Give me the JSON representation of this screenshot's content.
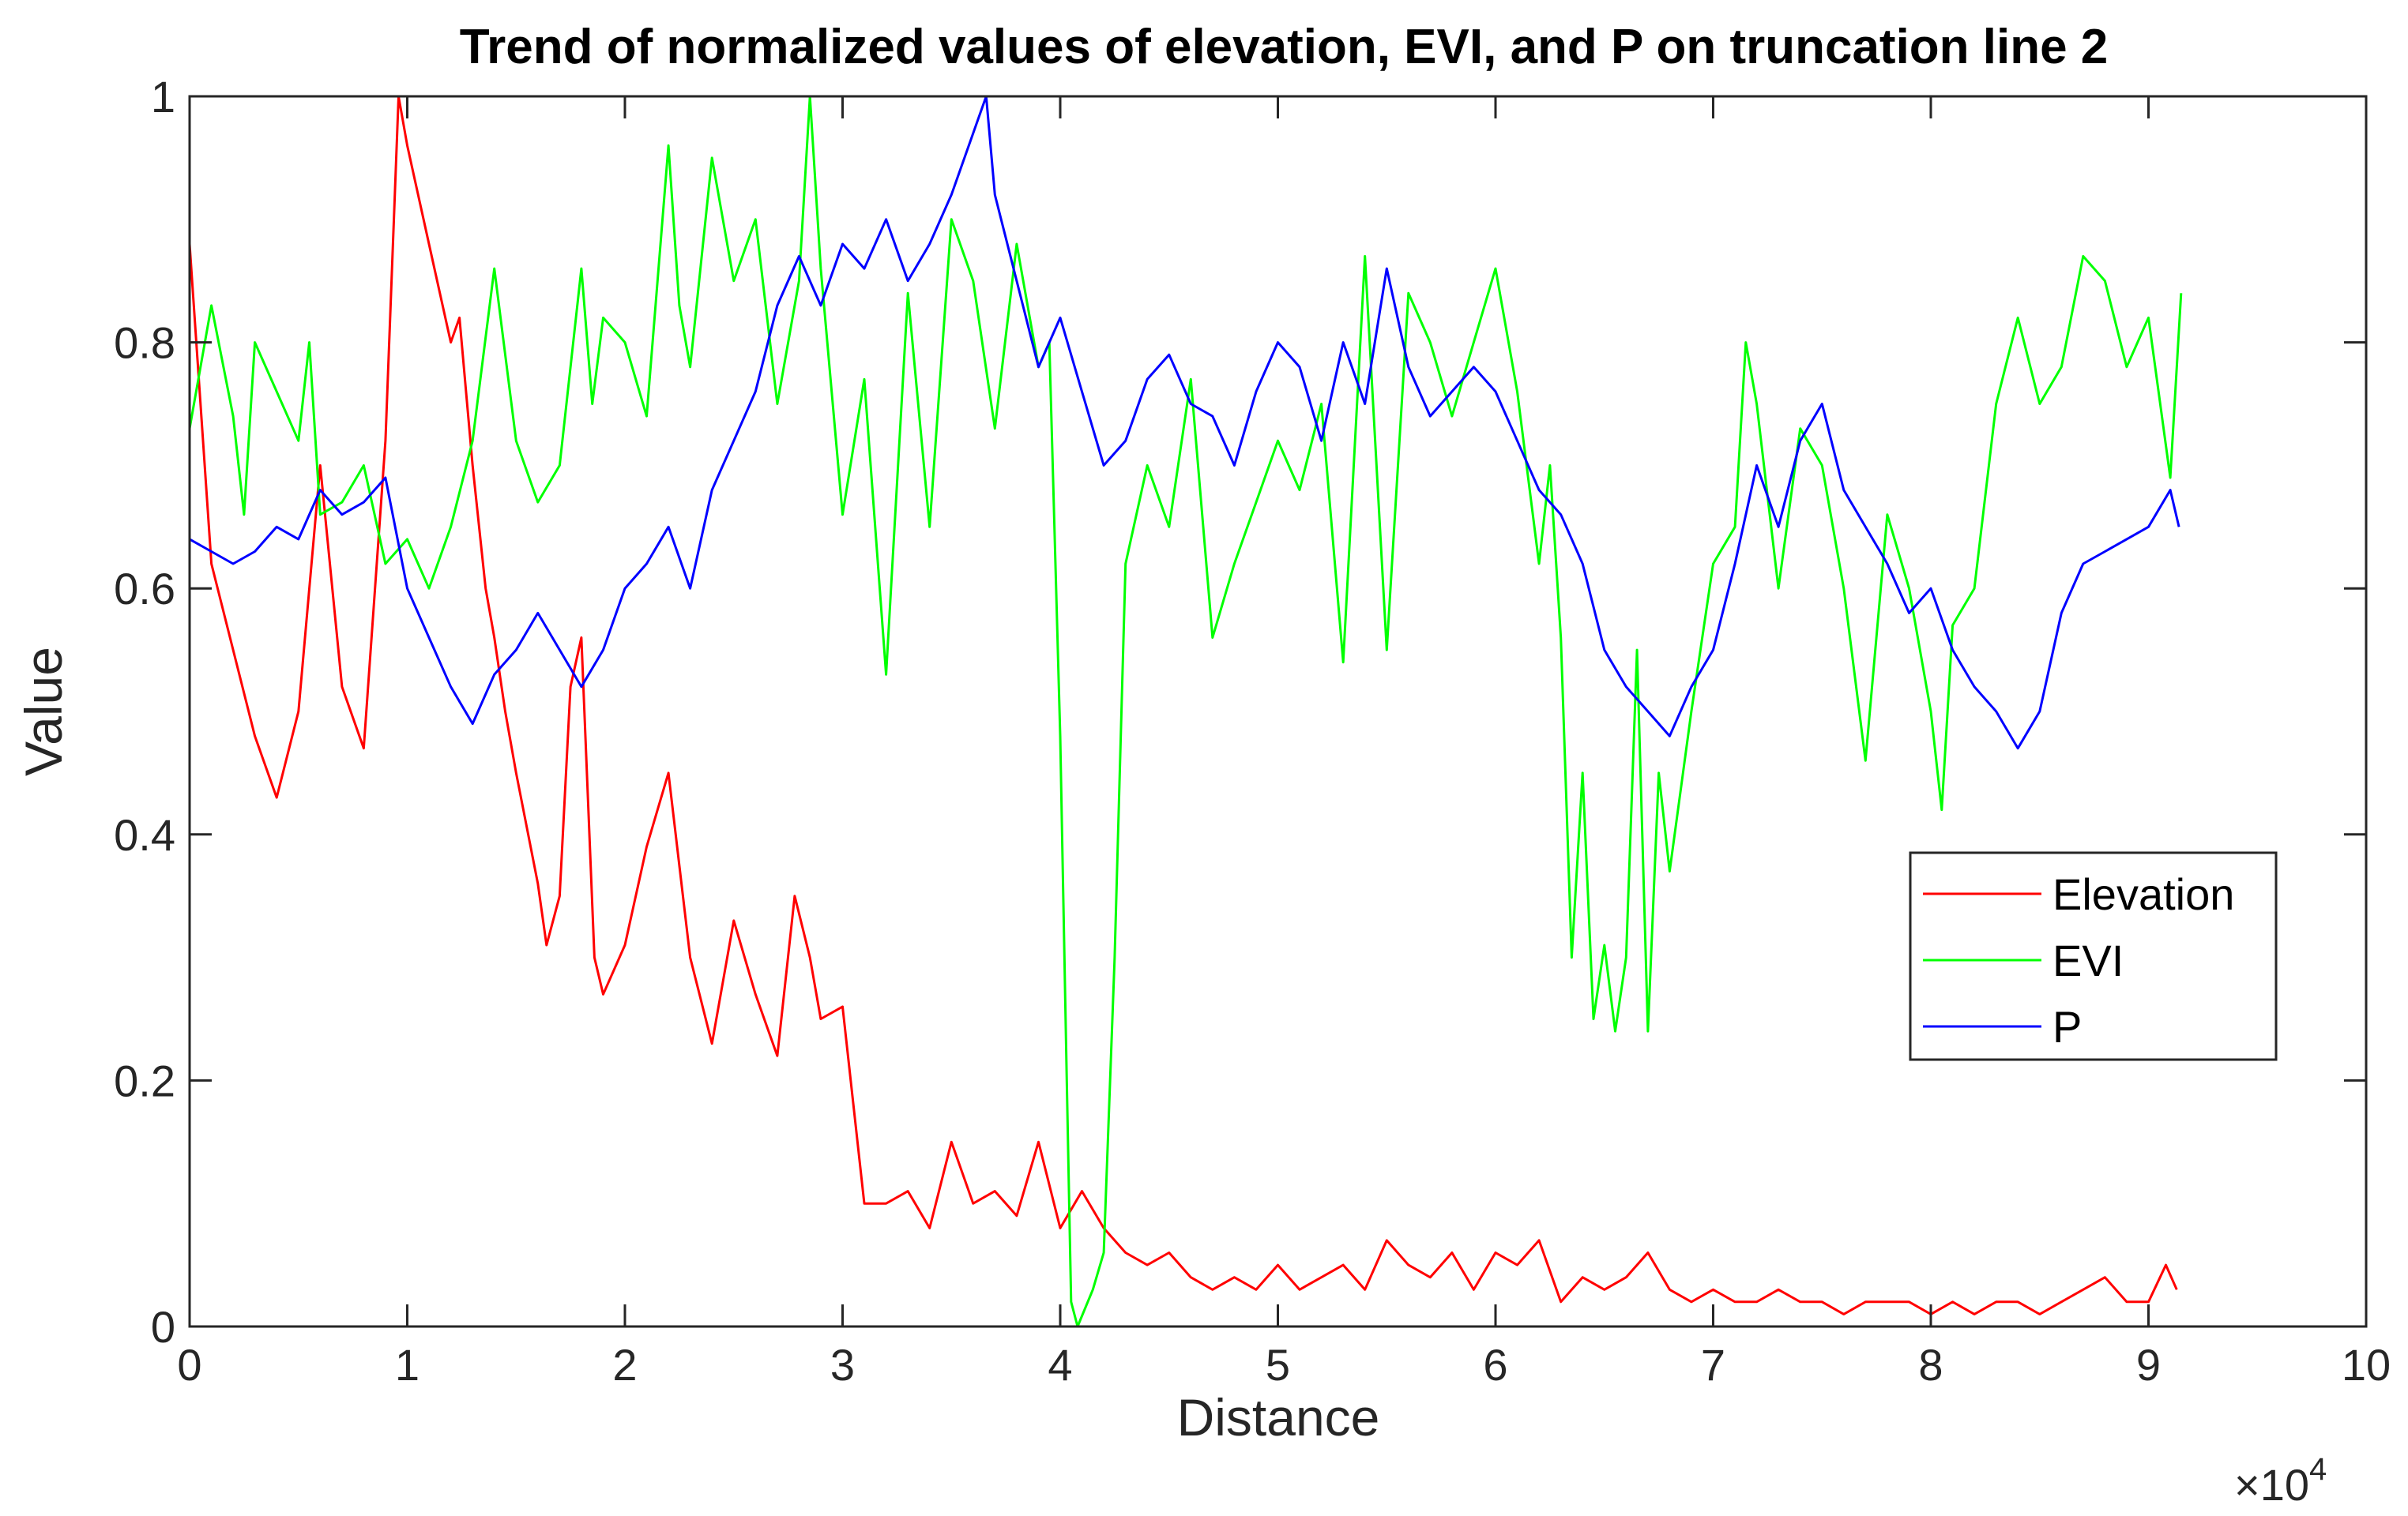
{
  "chart_data": {
    "type": "line",
    "title": "Trend of normalized values of elevation, EVI, and P on truncation line 2",
    "xlabel": "Distance",
    "ylabel": "Value",
    "xlim": [
      0,
      100000
    ],
    "ylim": [
      0,
      1
    ],
    "x_exponent_label": "×10",
    "x_exponent_power": "4",
    "x_tick_values": [
      0,
      10000,
      20000,
      30000,
      40000,
      50000,
      60000,
      70000,
      80000,
      90000,
      100000
    ],
    "x_tick_labels": [
      "0",
      "1",
      "2",
      "3",
      "4",
      "5",
      "6",
      "7",
      "8",
      "9",
      "10"
    ],
    "y_tick_values": [
      0,
      0.2,
      0.4,
      0.6,
      0.8,
      1
    ],
    "y_tick_labels": [
      "0",
      "0.2",
      "0.4",
      "0.6",
      "0.8",
      "1"
    ],
    "grid": false,
    "legend_position": "center-right",
    "series": [
      {
        "name": "Elevation",
        "color": "#ff0000",
        "x": [
          0,
          1000,
          2000,
          3000,
          4000,
          5000,
          6000,
          7000,
          8000,
          9000,
          9600,
          10000,
          11000,
          12000,
          12400,
          13000,
          13600,
          14000,
          14500,
          15000,
          16000,
          16400,
          17000,
          17500,
          18000,
          18600,
          19000,
          20000,
          21000,
          22000,
          23000,
          24000,
          25000,
          26000,
          27000,
          27800,
          28500,
          29000,
          30000,
          31000,
          32000,
          33000,
          34000,
          35000,
          36000,
          37000,
          38000,
          39000,
          40000,
          41000,
          42000,
          43000,
          44000,
          45000,
          46000,
          47000,
          48000,
          49000,
          50000,
          51000,
          52000,
          53000,
          54000,
          55000,
          56000,
          57000,
          58000,
          59000,
          60000,
          61000,
          62000,
          63000,
          64000,
          65000,
          66000,
          67000,
          68000,
          69000,
          70000,
          71000,
          72000,
          73000,
          74000,
          75000,
          76000,
          77000,
          78000,
          79000,
          80000,
          81000,
          82000,
          83000,
          84000,
          85000,
          86000,
          87000,
          88000,
          89000,
          90000,
          90800,
          91300
        ],
        "y": [
          0.88,
          0.62,
          0.55,
          0.48,
          0.43,
          0.5,
          0.7,
          0.52,
          0.47,
          0.72,
          1.0,
          0.96,
          0.88,
          0.8,
          0.82,
          0.7,
          0.6,
          0.56,
          0.5,
          0.45,
          0.36,
          0.31,
          0.35,
          0.52,
          0.56,
          0.3,
          0.27,
          0.31,
          0.39,
          0.45,
          0.3,
          0.23,
          0.33,
          0.27,
          0.22,
          0.35,
          0.3,
          0.25,
          0.26,
          0.1,
          0.1,
          0.11,
          0.08,
          0.15,
          0.1,
          0.11,
          0.09,
          0.15,
          0.08,
          0.11,
          0.08,
          0.06,
          0.05,
          0.06,
          0.04,
          0.03,
          0.04,
          0.03,
          0.05,
          0.03,
          0.04,
          0.05,
          0.03,
          0.07,
          0.05,
          0.04,
          0.06,
          0.03,
          0.06,
          0.05,
          0.07,
          0.02,
          0.04,
          0.03,
          0.04,
          0.06,
          0.03,
          0.02,
          0.03,
          0.02,
          0.02,
          0.03,
          0.02,
          0.02,
          0.01,
          0.02,
          0.02,
          0.02,
          0.01,
          0.02,
          0.01,
          0.02,
          0.02,
          0.01,
          0.02,
          0.03,
          0.04,
          0.02,
          0.02,
          0.05,
          0.03
        ]
      },
      {
        "name": "EVI",
        "color": "#00ff00",
        "x": [
          0,
          1000,
          2000,
          2500,
          3000,
          4000,
          5000,
          5500,
          6000,
          7000,
          8000,
          9000,
          10000,
          11000,
          12000,
          13000,
          14000,
          15000,
          16000,
          17000,
          18000,
          18500,
          19000,
          20000,
          21000,
          22000,
          22500,
          23000,
          24000,
          25000,
          26000,
          27000,
          28000,
          28500,
          29000,
          30000,
          31000,
          32000,
          33000,
          34000,
          35000,
          36000,
          37000,
          38000,
          39000,
          39500,
          40000,
          40300,
          40500,
          40800,
          41500,
          42000,
          42500,
          43000,
          44000,
          45000,
          46000,
          47000,
          48000,
          49000,
          50000,
          51000,
          52000,
          53000,
          54000,
          55000,
          56000,
          57000,
          58000,
          59000,
          60000,
          61000,
          62000,
          62500,
          63000,
          63500,
          64000,
          64500,
          65000,
          65500,
          66000,
          66500,
          67000,
          67500,
          68000,
          69000,
          70000,
          71000,
          71500,
          72000,
          73000,
          74000,
          75000,
          76000,
          77000,
          78000,
          79000,
          80000,
          80500,
          81000,
          82000,
          83000,
          84000,
          85000,
          86000,
          87000,
          88000,
          89000,
          90000,
          91000,
          91500
        ],
        "y": [
          0.73,
          0.83,
          0.74,
          0.66,
          0.8,
          0.76,
          0.72,
          0.8,
          0.66,
          0.67,
          0.7,
          0.62,
          0.64,
          0.6,
          0.65,
          0.72,
          0.86,
          0.72,
          0.67,
          0.7,
          0.86,
          0.75,
          0.82,
          0.8,
          0.74,
          0.96,
          0.83,
          0.78,
          0.95,
          0.85,
          0.9,
          0.75,
          0.85,
          1.0,
          0.86,
          0.66,
          0.77,
          0.53,
          0.84,
          0.65,
          0.9,
          0.85,
          0.73,
          0.88,
          0.78,
          0.8,
          0.48,
          0.2,
          0.02,
          0.0,
          0.03,
          0.06,
          0.3,
          0.62,
          0.7,
          0.65,
          0.77,
          0.56,
          0.62,
          0.67,
          0.72,
          0.68,
          0.75,
          0.54,
          0.87,
          0.55,
          0.84,
          0.8,
          0.74,
          0.8,
          0.86,
          0.76,
          0.62,
          0.7,
          0.56,
          0.3,
          0.45,
          0.25,
          0.31,
          0.24,
          0.3,
          0.55,
          0.24,
          0.45,
          0.37,
          0.5,
          0.62,
          0.65,
          0.8,
          0.75,
          0.6,
          0.73,
          0.7,
          0.6,
          0.46,
          0.66,
          0.6,
          0.5,
          0.42,
          0.57,
          0.6,
          0.75,
          0.82,
          0.75,
          0.78,
          0.87,
          0.85,
          0.78,
          0.82,
          0.69,
          0.84
        ]
      },
      {
        "name": "P",
        "color": "#0000ff",
        "x": [
          0,
          1000,
          2000,
          3000,
          4000,
          5000,
          6000,
          7000,
          8000,
          9000,
          10000,
          11000,
          12000,
          13000,
          14000,
          15000,
          16000,
          17000,
          18000,
          19000,
          20000,
          21000,
          22000,
          23000,
          24000,
          25000,
          26000,
          27000,
          28000,
          29000,
          30000,
          31000,
          32000,
          33000,
          34000,
          35000,
          36000,
          36600,
          37000,
          38000,
          39000,
          40000,
          41000,
          42000,
          43000,
          44000,
          45000,
          46000,
          47000,
          48000,
          49000,
          50000,
          51000,
          52000,
          53000,
          54000,
          55000,
          56000,
          57000,
          58000,
          59000,
          60000,
          61000,
          62000,
          63000,
          64000,
          65000,
          66000,
          67000,
          68000,
          69000,
          70000,
          71000,
          72000,
          73000,
          74000,
          75000,
          76000,
          77000,
          78000,
          79000,
          80000,
          81000,
          82000,
          83000,
          84000,
          85000,
          86000,
          87000,
          88000,
          89000,
          90000,
          91000,
          91400
        ],
        "y": [
          0.64,
          0.63,
          0.62,
          0.63,
          0.65,
          0.64,
          0.68,
          0.66,
          0.67,
          0.69,
          0.6,
          0.56,
          0.52,
          0.49,
          0.53,
          0.55,
          0.58,
          0.55,
          0.52,
          0.55,
          0.6,
          0.62,
          0.65,
          0.6,
          0.68,
          0.72,
          0.76,
          0.83,
          0.87,
          0.83,
          0.88,
          0.86,
          0.9,
          0.85,
          0.88,
          0.92,
          0.97,
          1.0,
          0.92,
          0.85,
          0.78,
          0.82,
          0.76,
          0.7,
          0.72,
          0.77,
          0.79,
          0.75,
          0.74,
          0.7,
          0.76,
          0.8,
          0.78,
          0.72,
          0.8,
          0.75,
          0.86,
          0.78,
          0.74,
          0.76,
          0.78,
          0.76,
          0.72,
          0.68,
          0.66,
          0.62,
          0.55,
          0.52,
          0.5,
          0.48,
          0.52,
          0.55,
          0.62,
          0.7,
          0.65,
          0.72,
          0.75,
          0.68,
          0.65,
          0.62,
          0.58,
          0.6,
          0.55,
          0.52,
          0.5,
          0.47,
          0.5,
          0.58,
          0.62,
          0.63,
          0.64,
          0.65,
          0.68,
          0.65
        ]
      }
    ]
  }
}
